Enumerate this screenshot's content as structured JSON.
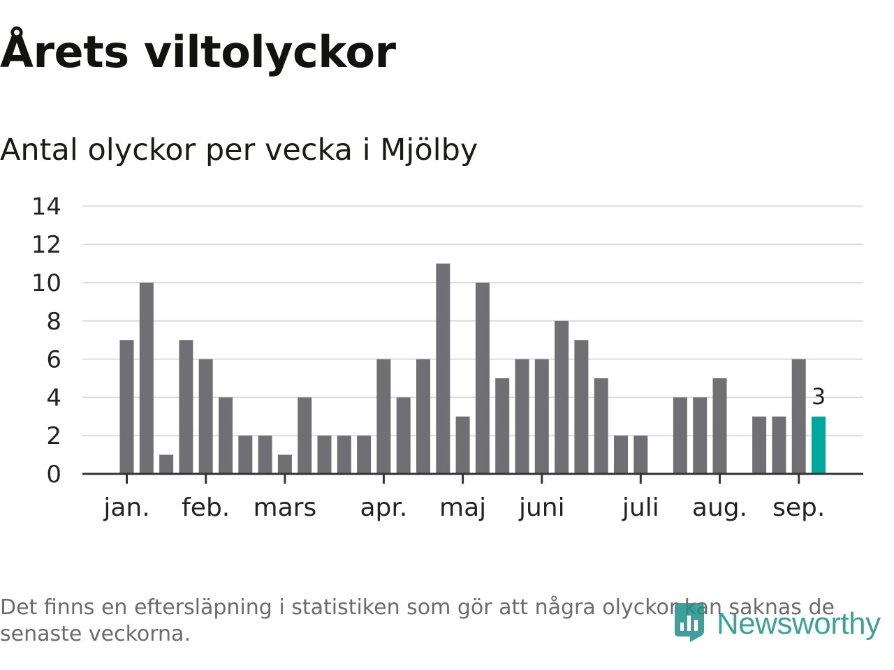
{
  "title": "Årets viltolyckor",
  "subtitle": "Antal olyckor per vecka i Mjölby",
  "footnote": "Det finns en eftersläpning i statistiken som gör att några olyckor kan saknas de senaste veckorna.",
  "logo_text": "Newsworthy",
  "colors": {
    "bar": "#706f74",
    "highlight": "#00a79d",
    "grid": "#dcdcdc",
    "axis": "#333333",
    "text": "#222222"
  },
  "chart_data": {
    "type": "bar",
    "grid": true,
    "ylim": [
      0,
      14
    ],
    "yticks": [
      0,
      2,
      4,
      6,
      8,
      10,
      12,
      14
    ],
    "values": [
      7,
      10,
      1,
      7,
      6,
      4,
      2,
      2,
      1,
      4,
      2,
      2,
      2,
      6,
      4,
      6,
      11,
      3,
      10,
      5,
      6,
      6,
      8,
      7,
      5,
      2,
      2,
      0,
      4,
      4,
      5,
      0,
      3,
      3,
      6,
      3
    ],
    "month_labels": [
      {
        "label": "jan.",
        "week": 1
      },
      {
        "label": "feb.",
        "week": 5
      },
      {
        "label": "mars",
        "week": 9
      },
      {
        "label": "apr.",
        "week": 14
      },
      {
        "label": "maj",
        "week": 18
      },
      {
        "label": "juni",
        "week": 22
      },
      {
        "label": "juli",
        "week": 27
      },
      {
        "label": "aug.",
        "week": 31
      },
      {
        "label": "sep.",
        "week": 35
      }
    ],
    "highlight_last": true,
    "highlight_label": "3"
  }
}
